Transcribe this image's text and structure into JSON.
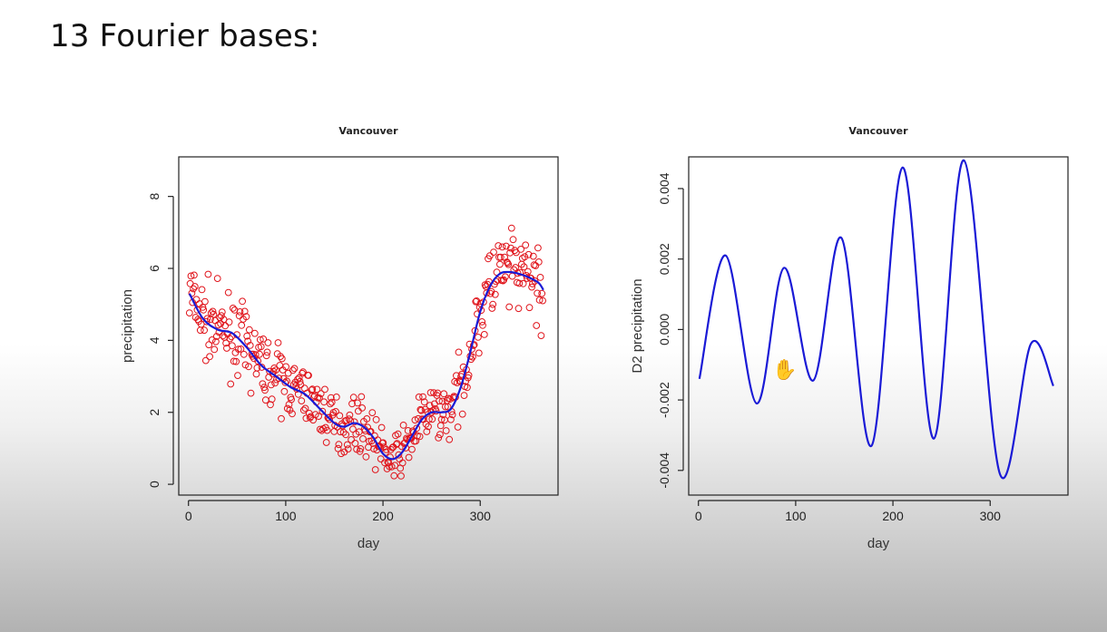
{
  "slide": {
    "title": "13 Fourier bases:"
  },
  "cursor": {
    "icon": "hand-cursor-icon",
    "glyph": "✋"
  },
  "colors": {
    "points": "#e0141b",
    "fit": "#1a1ad6",
    "axis": "#222222"
  },
  "chart_data": [
    {
      "type": "scatter",
      "title": "Vancouver",
      "xlabel": "day",
      "ylabel": "precipitation",
      "xlim": [
        -10,
        380
      ],
      "ylim": [
        -0.3,
        9.1
      ],
      "xticks": [
        0,
        100,
        200,
        300
      ],
      "yticks": [
        0,
        2,
        4,
        6,
        8
      ],
      "grid": false,
      "series": [
        {
          "kind": "points",
          "color": "#e0141b"
        },
        {
          "kind": "line",
          "color": "#1a1ad6",
          "x": [
            1,
            15,
            30,
            45,
            60,
            75,
            90,
            105,
            120,
            135,
            150,
            160,
            170,
            180,
            190,
            200,
            210,
            220,
            230,
            240,
            250,
            260,
            270,
            280,
            290,
            300,
            310,
            320,
            330,
            340,
            350,
            360,
            365
          ],
          "y": [
            5.3,
            4.6,
            4.3,
            4.2,
            3.8,
            3.3,
            3.0,
            2.7,
            2.5,
            2.1,
            1.7,
            1.6,
            1.7,
            1.6,
            1.3,
            0.85,
            0.7,
            0.9,
            1.35,
            1.8,
            2.0,
            2.0,
            2.1,
            2.7,
            3.7,
            4.8,
            5.5,
            5.85,
            5.9,
            5.85,
            5.75,
            5.6,
            5.4
          ]
        }
      ]
    },
    {
      "type": "line",
      "title": "Vancouver",
      "xlabel": "day",
      "ylabel": "D2 precipitation",
      "xlim": [
        -10,
        380
      ],
      "ylim": [
        -0.0047,
        0.0049
      ],
      "xticks": [
        0,
        100,
        200,
        300
      ],
      "yticks": [
        -0.004,
        -0.002,
        0.0,
        0.002,
        0.004
      ],
      "ytick_labels": [
        "-0.004",
        "-0.002",
        "0.000",
        "0.002",
        "0.004"
      ],
      "grid": false,
      "series": [
        {
          "kind": "line",
          "color": "#1a1ad6",
          "x": [
            1,
            28,
            60,
            88,
            118,
            147,
            178,
            210,
            242,
            273,
            310,
            342,
            365
          ],
          "y": [
            -0.0014,
            0.0021,
            -0.0021,
            0.00175,
            -0.00145,
            0.0026,
            -0.0033,
            0.0046,
            -0.0031,
            0.0048,
            -0.0041,
            -0.0004,
            -0.0016
          ]
        }
      ]
    }
  ]
}
